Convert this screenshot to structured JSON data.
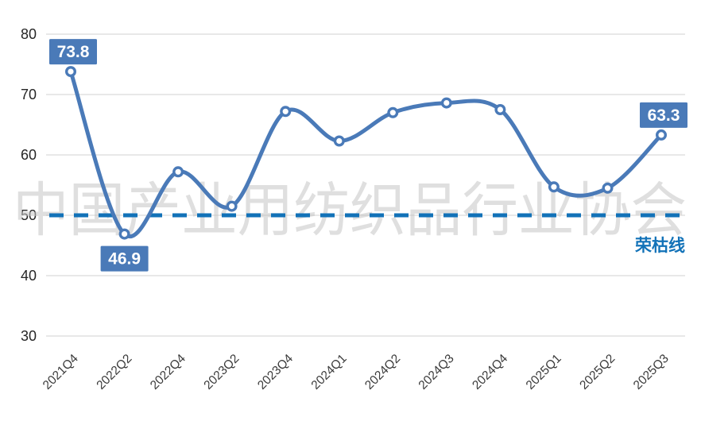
{
  "watermark": "中国产业用纺织品行业协会",
  "colors": {
    "series_line": "#4a7ab8",
    "marker_fill": "#ffffff",
    "threshold_line": "#1272b8",
    "threshold_label_color": "#1272b8",
    "data_label_bg": "#4a7ab8",
    "data_label_text": "#ffffff",
    "gridline": "#d9d9d9",
    "y_axis_text": "#262626",
    "x_axis_text": "#3a3a3a",
    "watermark_color": "#c6c6c6"
  },
  "chart_data": {
    "type": "line",
    "title": "",
    "xlabel": "",
    "ylabel": "",
    "categories": [
      "2021Q4",
      "2022Q2",
      "2022Q4",
      "2023Q2",
      "2023Q4",
      "2024Q1",
      "2024Q2",
      "2024Q3",
      "2024Q4",
      "2025Q1",
      "2025Q2",
      "2025Q3"
    ],
    "values": [
      73.8,
      46.9,
      57.2,
      51.5,
      67.2,
      62.3,
      67.0,
      68.6,
      67.5,
      54.7,
      54.5,
      63.3
    ],
    "ylim": [
      30,
      80
    ],
    "yticks": [
      30,
      40,
      50,
      60,
      70,
      80
    ],
    "grid": true,
    "legend_position": "none",
    "smooth": true,
    "data_labels": [
      {
        "index": 0,
        "text": "73.8",
        "position": "above"
      },
      {
        "index": 1,
        "text": "46.9",
        "position": "below"
      },
      {
        "index": 11,
        "text": "63.3",
        "position": "above"
      }
    ],
    "threshold": {
      "value": 50,
      "label": "荣枯线",
      "style": "dashed"
    }
  }
}
